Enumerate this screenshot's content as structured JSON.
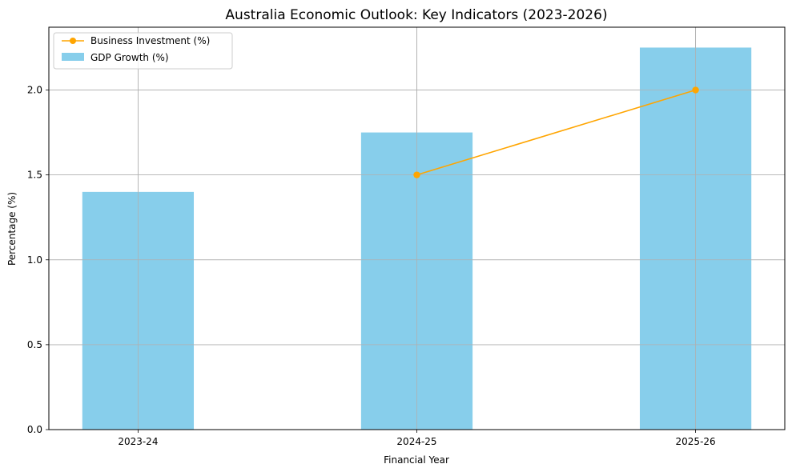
{
  "chart_data": {
    "type": "bar",
    "title": "Australia Economic Outlook: Key Indicators (2023-2026)",
    "xlabel": "Financial Year",
    "ylabel": "Percentage (%)",
    "categories": [
      "2023-24",
      "2024-25",
      "2025-26"
    ],
    "ylim": [
      0,
      2.37
    ],
    "yticks": [
      "0.0",
      "0.5",
      "1.0",
      "1.5",
      "2.0"
    ],
    "grid": true,
    "legend_position": "top-left",
    "series": [
      {
        "name": "GDP Growth (%)",
        "kind": "bar",
        "color": "#87ceeb",
        "values": [
          1.4,
          1.75,
          2.25
        ]
      },
      {
        "name": "Business Investment (%)",
        "kind": "line",
        "marker": "circle",
        "color": "#ffa500",
        "values": [
          null,
          1.5,
          2.0
        ]
      }
    ]
  }
}
